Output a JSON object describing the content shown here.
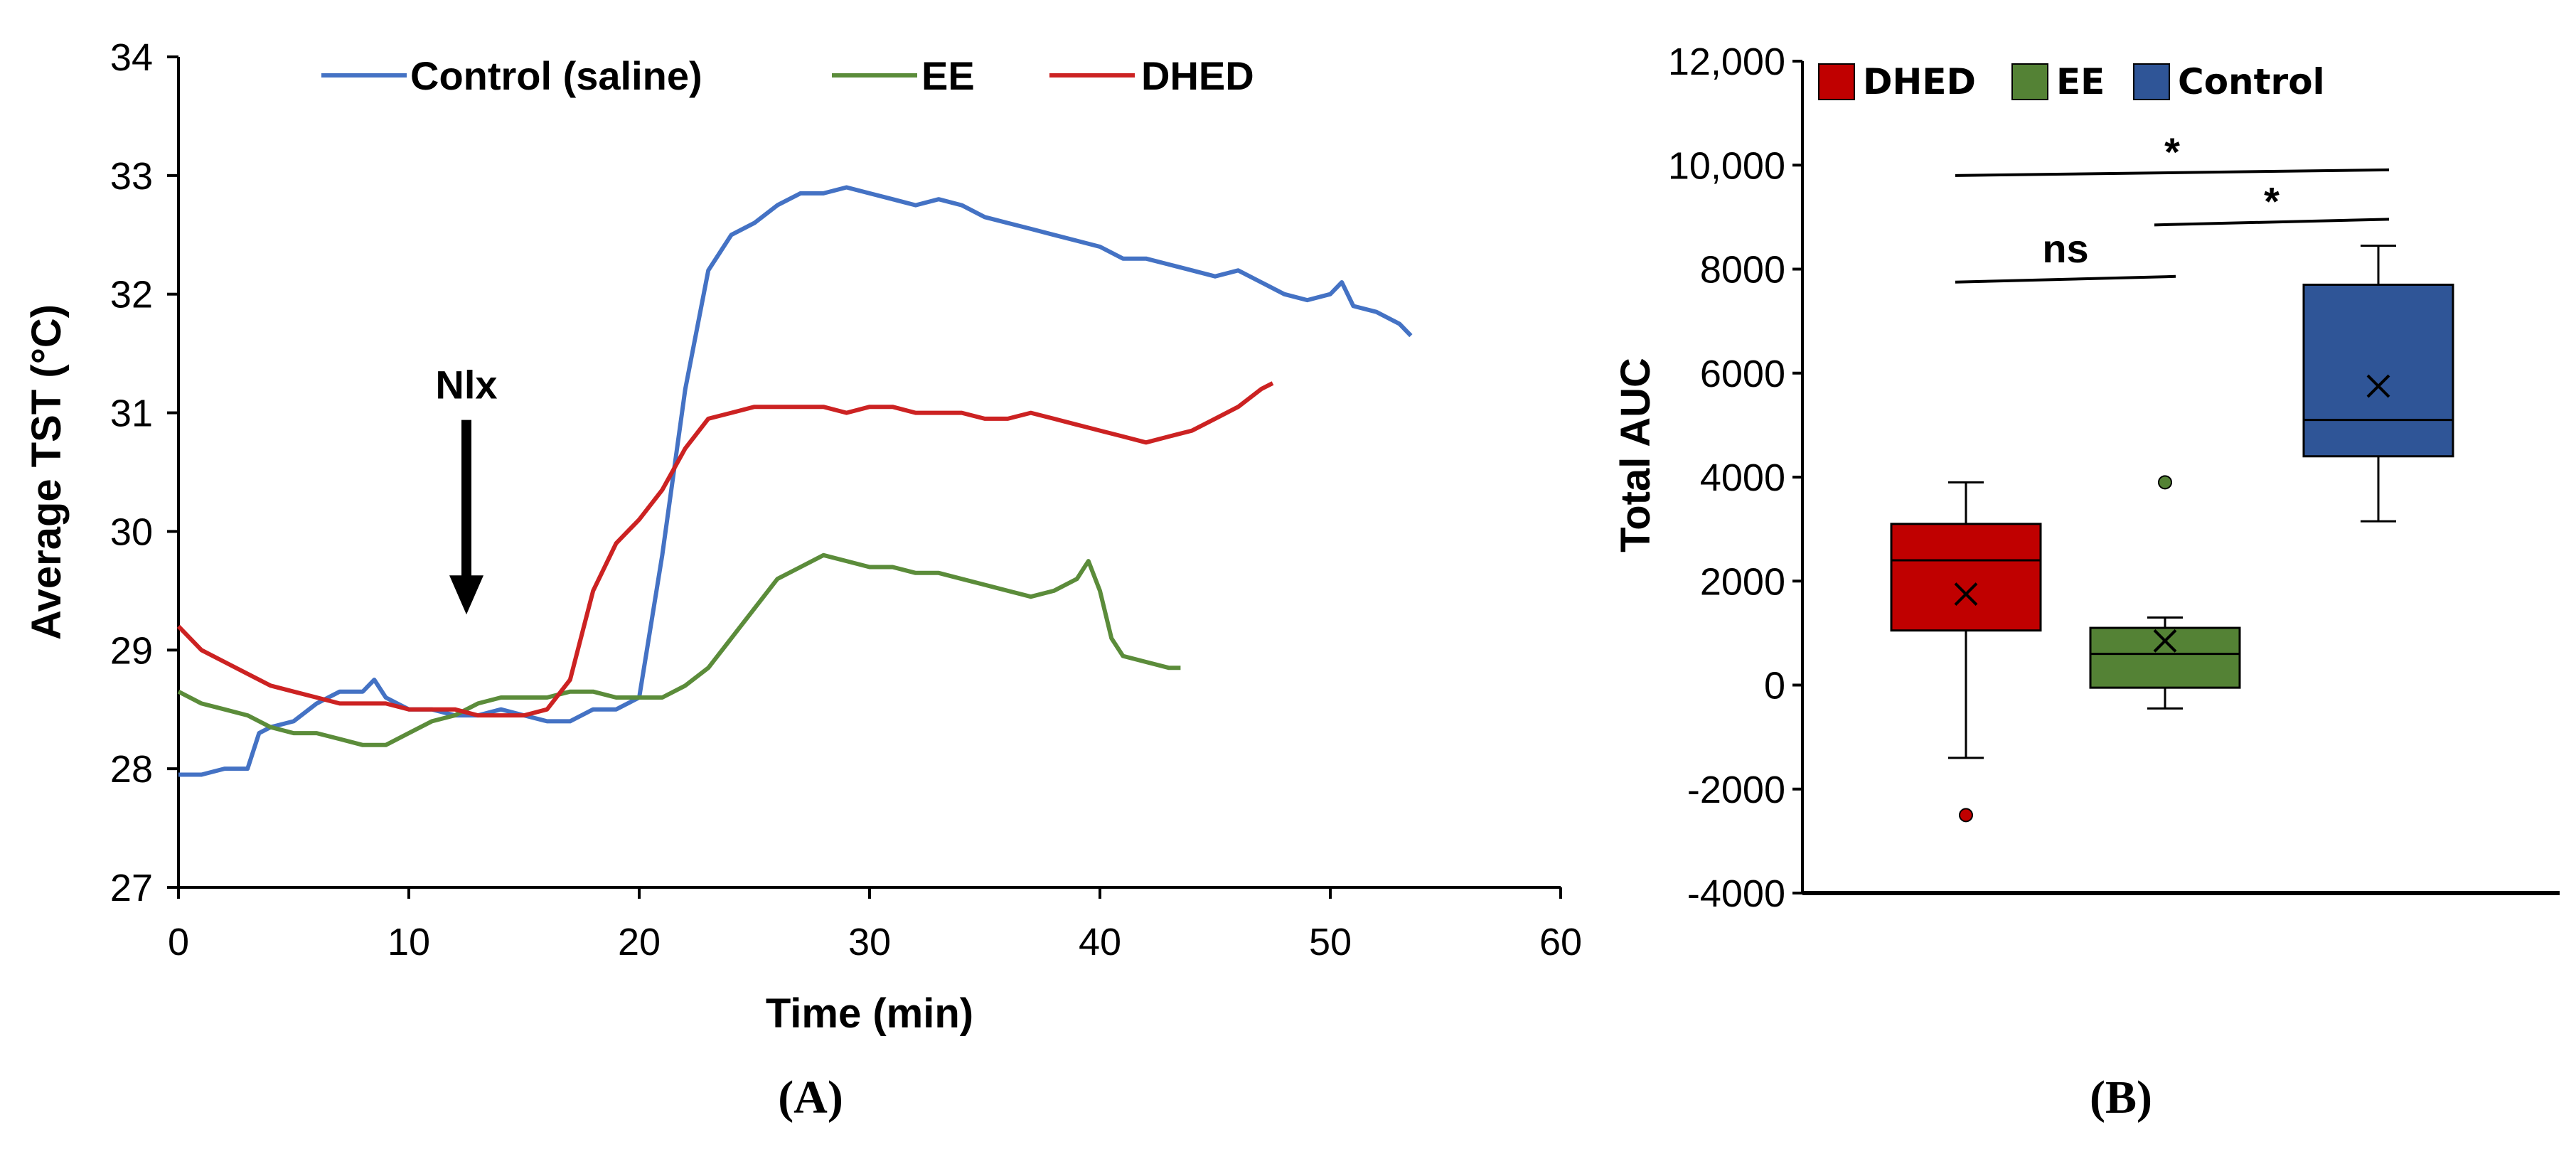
{
  "chart_data": [
    {
      "type": "line",
      "panel": "A",
      "panel_label": "(A)",
      "xlabel": "Time (min)",
      "ylabel": "Average TST (°C)",
      "xlim": [
        0,
        60
      ],
      "ylim": [
        27,
        34
      ],
      "xticks": [
        0,
        10,
        20,
        30,
        40,
        50,
        60
      ],
      "yticks": [
        27,
        28,
        29,
        30,
        31,
        32,
        33,
        34
      ],
      "legend_position": "top",
      "annotation": {
        "text": "Nlx",
        "x": 12.5,
        "arrow_from_y": 31.0,
        "arrow_to_y": 29.3
      },
      "series": [
        {
          "name": "Control (saline)",
          "color": "#4472c4",
          "x": [
            0,
            1,
            2,
            3,
            3.5,
            4,
            5,
            6,
            7,
            8,
            8.5,
            9,
            9.5,
            10,
            11,
            12,
            13,
            14,
            15,
            16,
            17,
            18,
            19,
            20,
            21,
            22,
            23,
            24,
            25,
            26,
            27,
            28,
            29,
            30,
            31,
            32,
            33,
            34,
            35,
            36,
            37,
            38,
            39,
            40,
            41,
            42,
            43,
            44,
            45,
            46,
            47,
            48,
            49,
            50,
            50.5,
            51,
            52,
            53,
            53.5
          ],
          "y": [
            27.95,
            27.95,
            28.0,
            28.0,
            28.3,
            28.35,
            28.4,
            28.55,
            28.65,
            28.65,
            28.75,
            28.6,
            28.55,
            28.5,
            28.5,
            28.45,
            28.45,
            28.5,
            28.45,
            28.4,
            28.4,
            28.5,
            28.5,
            28.6,
            29.8,
            31.2,
            32.2,
            32.5,
            32.6,
            32.75,
            32.85,
            32.85,
            32.9,
            32.85,
            32.8,
            32.75,
            32.8,
            32.75,
            32.65,
            32.6,
            32.55,
            32.5,
            32.45,
            32.4,
            32.3,
            32.3,
            32.25,
            32.2,
            32.15,
            32.2,
            32.1,
            32.0,
            31.95,
            32.0,
            32.1,
            31.9,
            31.85,
            31.75,
            31.65
          ]
        },
        {
          "name": "EE",
          "color": "#5b8c3a",
          "x": [
            0,
            1,
            2,
            3,
            4,
            5,
            6,
            7,
            8,
            9,
            10,
            11,
            12,
            13,
            14,
            15,
            16,
            17,
            18,
            19,
            20,
            21,
            22,
            23,
            24,
            25,
            26,
            27,
            28,
            29,
            30,
            31,
            32,
            33,
            34,
            35,
            36,
            37,
            38,
            39,
            39.5,
            40,
            40.5,
            41,
            42,
            43,
            43.5
          ],
          "y": [
            28.65,
            28.55,
            28.5,
            28.45,
            28.35,
            28.3,
            28.3,
            28.25,
            28.2,
            28.2,
            28.3,
            28.4,
            28.45,
            28.55,
            28.6,
            28.6,
            28.6,
            28.65,
            28.65,
            28.6,
            28.6,
            28.6,
            28.7,
            28.85,
            29.1,
            29.35,
            29.6,
            29.7,
            29.8,
            29.75,
            29.7,
            29.7,
            29.65,
            29.65,
            29.6,
            29.55,
            29.5,
            29.45,
            29.5,
            29.6,
            29.75,
            29.5,
            29.1,
            28.95,
            28.9,
            28.85,
            28.85
          ]
        },
        {
          "name": "DHED",
          "color": "#cc2222",
          "x": [
            0,
            1,
            2,
            3,
            4,
            5,
            6,
            7,
            8,
            9,
            10,
            11,
            12,
            13,
            14,
            15,
            16,
            17,
            18,
            19,
            20,
            21,
            22,
            23,
            24,
            25,
            26,
            27,
            28,
            29,
            30,
            31,
            32,
            33,
            34,
            35,
            36,
            37,
            38,
            39,
            40,
            41,
            42,
            43,
            44,
            45,
            46,
            47,
            47.5
          ],
          "y": [
            29.2,
            29.0,
            28.9,
            28.8,
            28.7,
            28.65,
            28.6,
            28.55,
            28.55,
            28.55,
            28.5,
            28.5,
            28.5,
            28.45,
            28.45,
            28.45,
            28.5,
            28.75,
            29.5,
            29.9,
            30.1,
            30.35,
            30.7,
            30.95,
            31.0,
            31.05,
            31.05,
            31.05,
            31.05,
            31.0,
            31.05,
            31.05,
            31.0,
            31.0,
            31.0,
            30.95,
            30.95,
            31.0,
            30.95,
            30.9,
            30.85,
            30.8,
            30.75,
            30.8,
            30.85,
            30.95,
            31.05,
            31.2,
            31.25
          ]
        }
      ]
    },
    {
      "type": "box",
      "panel": "B",
      "panel_label": "(B)",
      "ylabel": "Total AUC",
      "ylim": [
        -4000,
        12000
      ],
      "yticks": [
        -4000,
        -2000,
        0,
        2000,
        4000,
        6000,
        8000,
        10000,
        12000
      ],
      "ytick_labels": [
        "-4000",
        "-2000",
        "0",
        "2000",
        "4000",
        "6000",
        "8000",
        "10,000",
        "12,000"
      ],
      "legend_position": "top-left",
      "groups": [
        {
          "name": "DHED",
          "color": "#c00000",
          "whisker_low": -1400,
          "q1": 1050,
          "median": 2400,
          "q3": 3100,
          "whisker_high": 3900,
          "mean": 1750,
          "outliers": [
            -2500
          ]
        },
        {
          "name": "EE",
          "color": "#548235",
          "whisker_low": -450,
          "q1": -50,
          "median": 600,
          "q3": 1100,
          "whisker_high": 1300,
          "mean": 850,
          "outliers": [
            3900
          ]
        },
        {
          "name": "Control",
          "color": "#2f5597",
          "whisker_low": 3150,
          "q1": 4400,
          "median": 5100,
          "q3": 7700,
          "whisker_high": 8450,
          "mean": 5750,
          "outliers": []
        }
      ],
      "legend_order": [
        "DHED",
        "EE",
        "Control"
      ],
      "significance": [
        {
          "from": "DHED",
          "to": "EE",
          "label": "ns",
          "y": 7750
        },
        {
          "from": "EE",
          "to": "Control",
          "label": "*",
          "y": 8850
        },
        {
          "from": "DHED",
          "to": "Control",
          "label": "*",
          "y": 9800
        }
      ]
    }
  ]
}
